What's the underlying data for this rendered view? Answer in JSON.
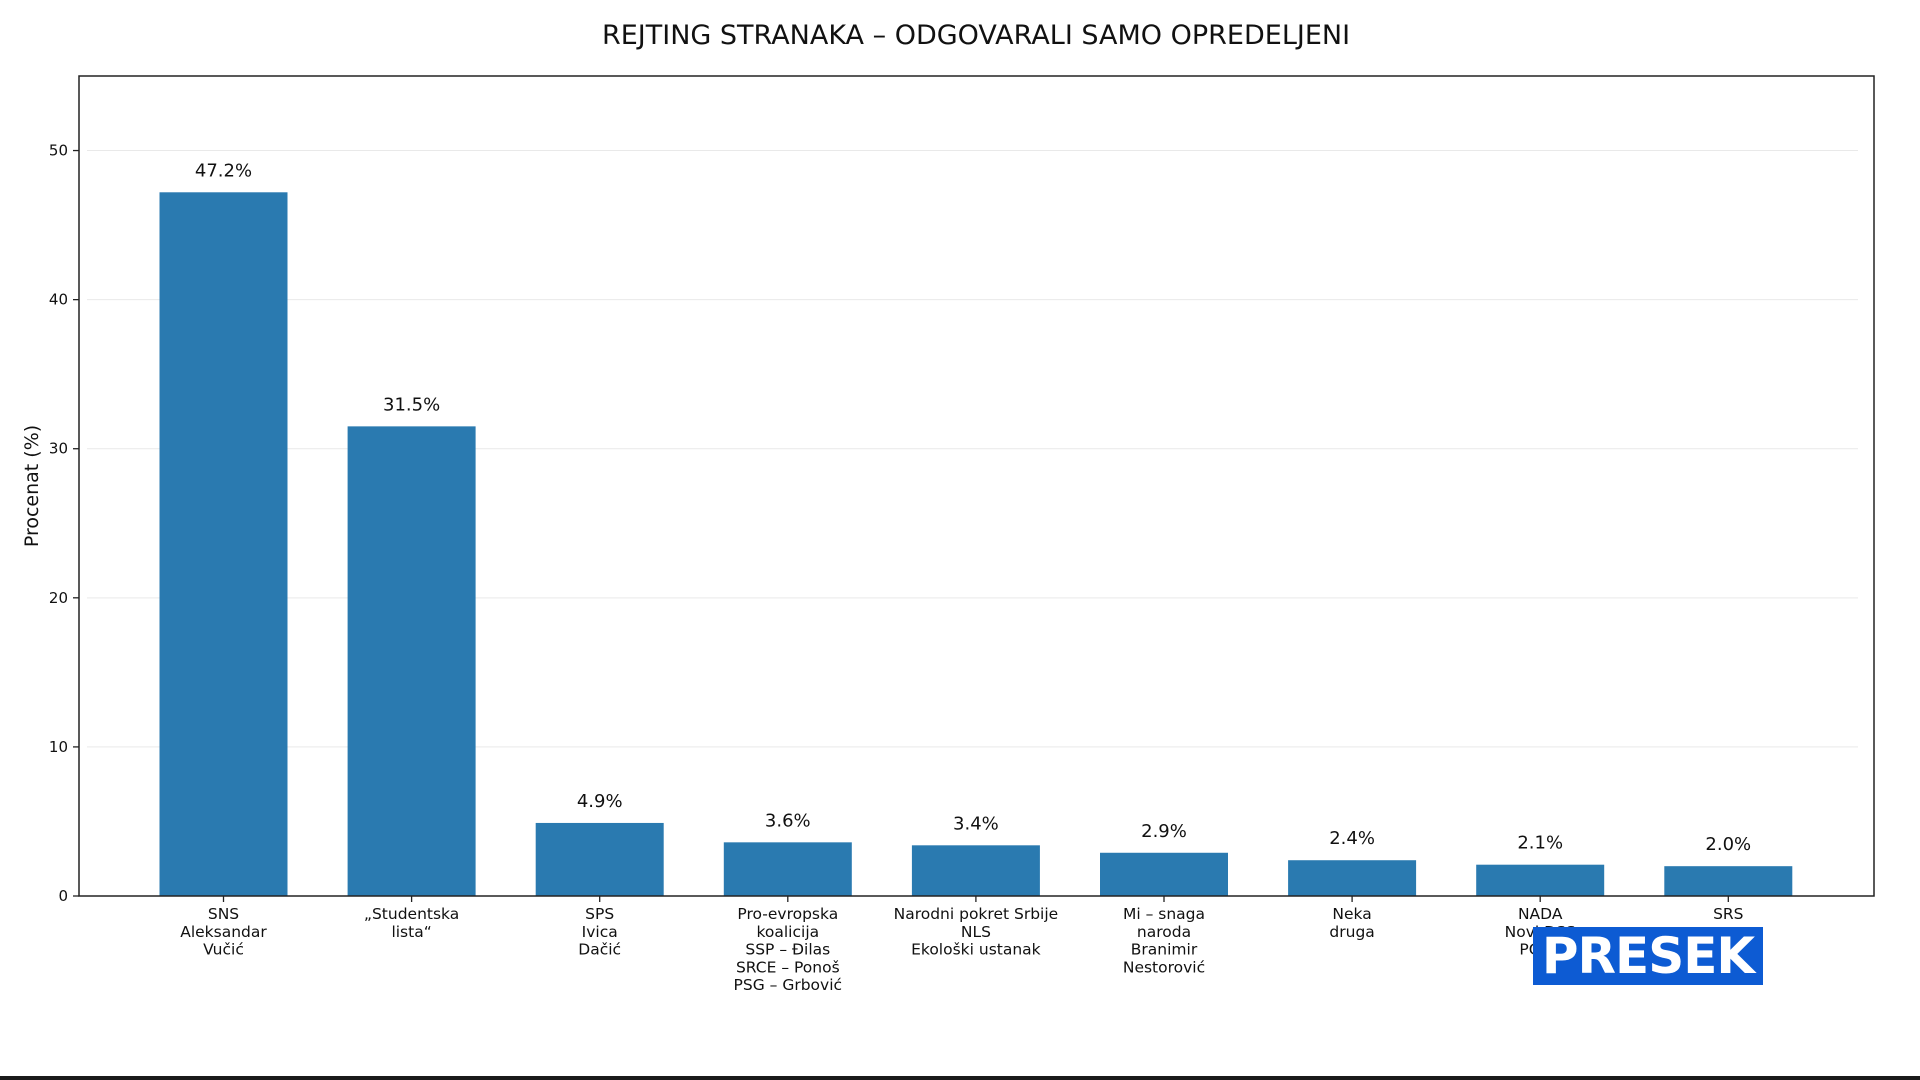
{
  "chart_data": {
    "type": "bar",
    "title": "REJTING STRANAKA – ODGOVARALI SAMO OPREDELJENI",
    "xlabel": "",
    "ylabel": "Procenat (%)",
    "ylim": [
      0,
      55
    ],
    "yticks": [
      "0",
      "10",
      "20",
      "30",
      "40",
      "50"
    ],
    "grid": "horizontal",
    "bar_color": "#2a7ab0",
    "categories": [
      [
        "SNS",
        "Aleksandar",
        "Vučić"
      ],
      [
        "„Studentska",
        "lista“"
      ],
      [
        "SPS",
        "Ivica",
        "Dačić"
      ],
      [
        "Pro-evropska",
        "koalicija",
        "SSP – Đilas",
        "SRCE – Ponoš",
        "PSG – Grbović"
      ],
      [
        "Narodni pokret Srbije",
        "NLS",
        "Ekološki ustanak"
      ],
      [
        "Mi – snaga",
        "naroda",
        "Branimir",
        "Nestorović"
      ],
      [
        "Neka",
        "druga"
      ],
      [
        "NADA",
        "Novi DSS",
        "POKS"
      ],
      [
        "SRS"
      ]
    ],
    "values": [
      47.2,
      31.5,
      4.9,
      3.6,
      3.4,
      2.9,
      2.4,
      2.1,
      2.0
    ],
    "value_labels": [
      "47.2%",
      "31.5%",
      "4.9%",
      "3.6%",
      "3.4%",
      "2.9%",
      "2.4%",
      "2.1%",
      "2.0%"
    ]
  },
  "watermark": {
    "text": "PRESEK",
    "color": "#0d5bd3"
  }
}
